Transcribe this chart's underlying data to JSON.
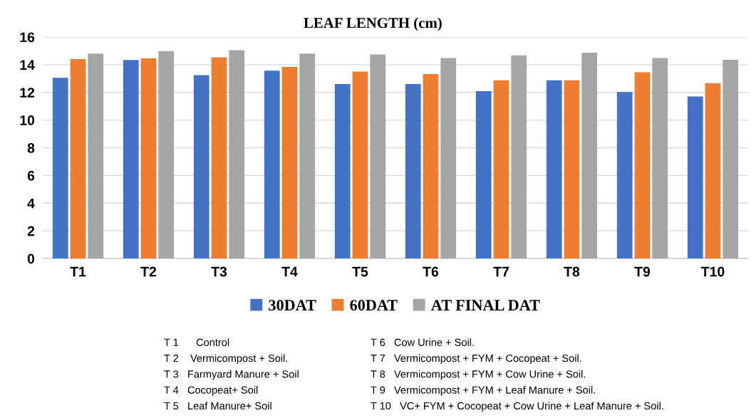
{
  "chart_data": {
    "type": "bar",
    "title": "LEAF LENGTH (cm)",
    "categories": [
      "T1",
      "T2",
      "T3",
      "T4",
      "T5",
      "T6",
      "T7",
      "T8",
      "T9",
      "T10"
    ],
    "series": [
      {
        "name": "30DAT",
        "color": "#4472c4",
        "values": [
          13.05,
          14.34,
          13.25,
          13.57,
          12.61,
          12.6,
          12.09,
          12.87,
          12.02,
          11.7
        ]
      },
      {
        "name": "60DAT",
        "color": "#ed7d31",
        "values": [
          14.41,
          14.46,
          14.54,
          13.84,
          13.5,
          13.33,
          12.87,
          12.87,
          13.45,
          12.67
        ]
      },
      {
        "name": "AT FINAL DAT",
        "color": "#a5a5a5",
        "values": [
          14.8,
          14.98,
          15.05,
          14.8,
          14.74,
          14.48,
          14.67,
          14.87,
          14.48,
          14.35
        ]
      }
    ],
    "ylim": [
      0,
      16
    ],
    "yticks": [
      0,
      2,
      4,
      6,
      8,
      10,
      12,
      14,
      16
    ],
    "grid": "y",
    "legend": "bottom",
    "annotations": [
      "T 1      Control",
      "T 2    Vermicompost + Soil.",
      "T 3   Farmyard Manure + Soil",
      "T 4   Cocopeat+ Soil",
      "T 5   Leaf Manure+ Soil",
      "T 6   Cow Urine + Soil.",
      "T 7   Vermicompost + FYM + Cocopeat + Soil.",
      "T 8   Vermicompost + FYM + Cow Urine + Soil.",
      "T 9   Vermicompost + FYM + Leaf Manure + Soil.",
      "T 10   VC+ FYM + Cocopeat + Cow Urine + Leaf Manure + Soil."
    ]
  }
}
